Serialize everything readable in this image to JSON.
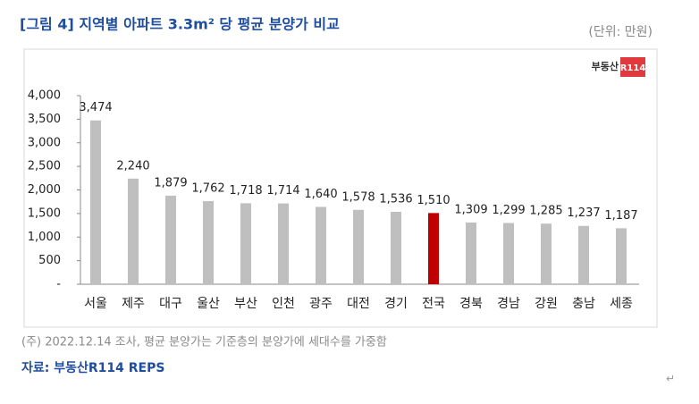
{
  "chart_data": {
    "type": "bar",
    "title": "[그림 4] 지역별 아파트 3.3m² 당 평균 분양가 비교",
    "unit": "(단위: 만원)",
    "logo": {
      "text": "부동산",
      "badge": "R114"
    },
    "categories": [
      "서울",
      "제주",
      "대구",
      "울산",
      "부산",
      "인천",
      "광주",
      "대전",
      "경기",
      "전국",
      "경북",
      "경남",
      "강원",
      "충남",
      "세종"
    ],
    "values": [
      3474,
      2240,
      1879,
      1762,
      1718,
      1714,
      1640,
      1578,
      1536,
      1510,
      1309,
      1299,
      1285,
      1237,
      1187
    ],
    "value_labels": [
      "3,474",
      "2,240",
      "1,879",
      "1,762",
      "1,718",
      "1,714",
      "1,640",
      "1,578",
      "1,536",
      "1,510",
      "1,309",
      "1,299",
      "1,285",
      "1,237",
      "1,187"
    ],
    "colors": [
      "#bfbfbf",
      "#bfbfbf",
      "#bfbfbf",
      "#bfbfbf",
      "#bfbfbf",
      "#bfbfbf",
      "#bfbfbf",
      "#bfbfbf",
      "#bfbfbf",
      "#c00000",
      "#bfbfbf",
      "#bfbfbf",
      "#bfbfbf",
      "#bfbfbf",
      "#bfbfbf"
    ],
    "ylim": [
      0,
      4000
    ],
    "yticks": [
      {
        "value": 0,
        "label": "-"
      },
      500,
      {
        "value": 1000,
        "label": "1,000"
      },
      {
        "value": 1500,
        "label": "1,500"
      },
      {
        "value": 2000,
        "label": "2,000"
      },
      {
        "value": 2500,
        "label": "2,500"
      },
      {
        "value": 3000,
        "label": "3,000"
      },
      {
        "value": 3500,
        "label": "3,500"
      },
      {
        "value": 4000,
        "label": "4,000"
      }
    ],
    "grid": false,
    "note": "(주) 2022.12.14 조사, 평균 분양가는 기준층의 분양가에 세대수를 가중함",
    "source": "자료: 부동산R114 REPS",
    "return_mark": "↵"
  }
}
